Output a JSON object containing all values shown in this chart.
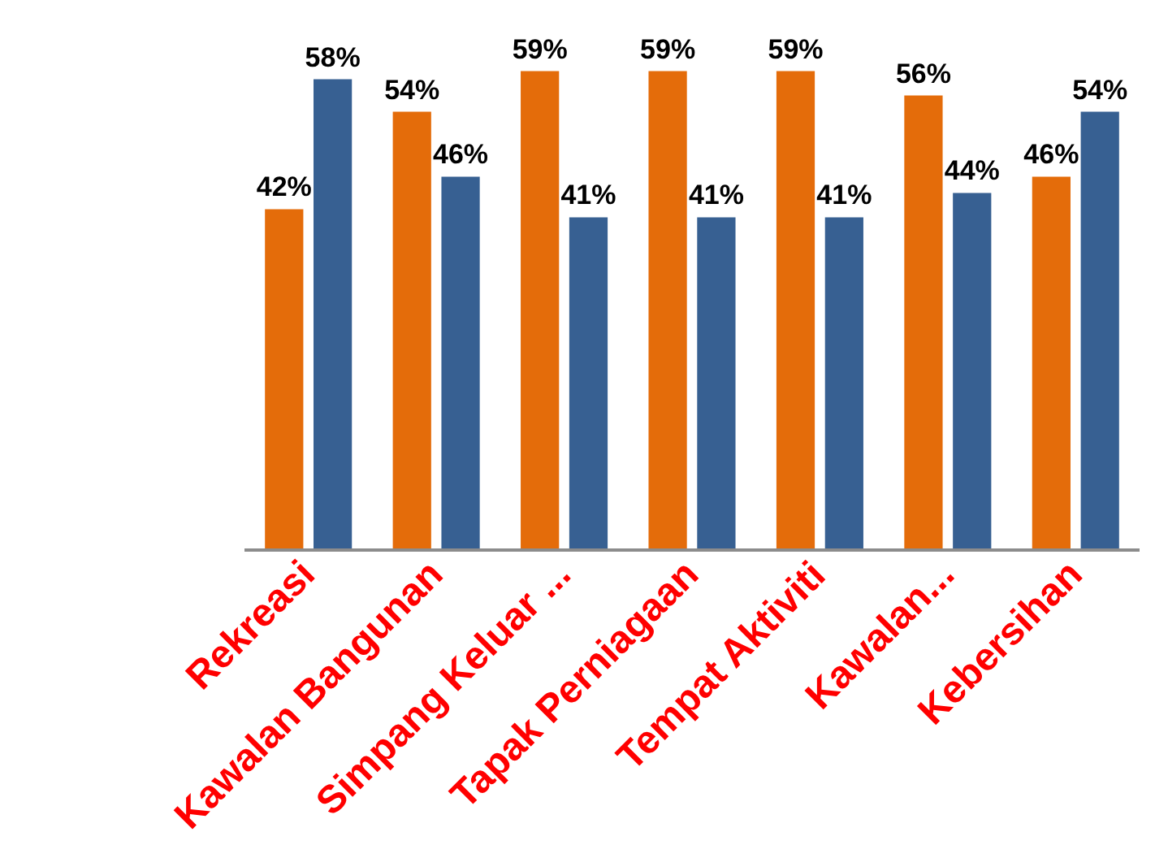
{
  "chart_data": {
    "type": "bar",
    "categories": [
      "Rekreasi",
      "Kawalan Bangunan",
      "Simpang Keluar ...",
      "Tapak Perniagaan",
      "Tempat Aktiviti",
      "Kawalan...",
      "Kebersihan"
    ],
    "series": [
      {
        "color": "#e46c0a",
        "values": [
          42,
          54,
          59,
          59,
          59,
          56,
          46
        ],
        "value_labels": [
          "42%",
          "54%",
          "59%",
          "59%",
          "59%",
          "56%",
          "46%"
        ]
      },
      {
        "color": "#376092",
        "values": [
          58,
          46,
          41,
          41,
          41,
          44,
          54
        ],
        "value_labels": [
          "58%",
          "46%",
          "41%",
          "41%",
          "41%",
          "44%",
          "54%"
        ]
      }
    ],
    "grid": false
  }
}
